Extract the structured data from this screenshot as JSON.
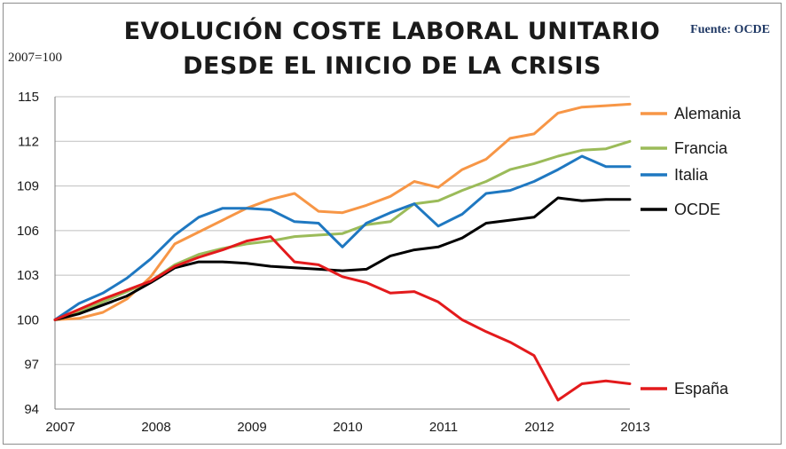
{
  "title_lines": [
    "EVOLUCIÓN COSTE LABORAL UNITARIO",
    "DESDE EL INICIO DE LA CRISIS"
  ],
  "source": "Fuente: OCDE",
  "unit_label": "2007=100",
  "chart_data": {
    "type": "line",
    "title": "EVOLUCIÓN COSTE LABORAL UNITARIO DESDE EL INICIO DE LA CRISIS",
    "xlabel": "",
    "ylabel": "2007=100",
    "xlim": [
      2007,
      2013
    ],
    "ylim": [
      94,
      115
    ],
    "yticks": [
      94,
      97,
      100,
      103,
      106,
      109,
      112,
      115
    ],
    "xticks": [
      2007,
      2008,
      2009,
      2010,
      2011,
      2012,
      2013
    ],
    "grid": "horizontal",
    "legend_placement": "right",
    "series": [
      {
        "name": "Alemania",
        "color": "#f79646",
        "points": [
          [
            2007,
            100
          ],
          [
            2007.25,
            100.1
          ],
          [
            2007.5,
            100.5
          ],
          [
            2007.75,
            101.4
          ],
          [
            2008,
            102.9
          ],
          [
            2008.25,
            105.1
          ],
          [
            2008.5,
            105.9
          ],
          [
            2008.75,
            106.7
          ],
          [
            2009,
            107.5
          ],
          [
            2009.25,
            108.1
          ],
          [
            2009.5,
            108.5
          ],
          [
            2009.75,
            107.3
          ],
          [
            2010,
            107.2
          ],
          [
            2010.25,
            107.7
          ],
          [
            2010.5,
            108.3
          ],
          [
            2010.75,
            109.3
          ],
          [
            2011,
            108.9
          ],
          [
            2011.25,
            110.1
          ],
          [
            2011.5,
            110.8
          ],
          [
            2011.75,
            112.2
          ],
          [
            2012,
            112.5
          ],
          [
            2012.25,
            113.9
          ],
          [
            2012.5,
            114.3
          ],
          [
            2012.75,
            114.4
          ],
          [
            2013,
            114.5
          ]
        ]
      },
      {
        "name": "Francia",
        "color": "#9bbb59",
        "points": [
          [
            2007,
            100
          ],
          [
            2007.25,
            100.5
          ],
          [
            2007.5,
            101.2
          ],
          [
            2007.75,
            101.9
          ],
          [
            2008,
            102.6
          ],
          [
            2008.25,
            103.7
          ],
          [
            2008.5,
            104.4
          ],
          [
            2008.75,
            104.8
          ],
          [
            2009,
            105.1
          ],
          [
            2009.25,
            105.3
          ],
          [
            2009.5,
            105.6
          ],
          [
            2009.75,
            105.7
          ],
          [
            2010,
            105.8
          ],
          [
            2010.25,
            106.4
          ],
          [
            2010.5,
            106.6
          ],
          [
            2010.75,
            107.8
          ],
          [
            2011,
            108
          ],
          [
            2011.25,
            108.7
          ],
          [
            2011.5,
            109.3
          ],
          [
            2011.75,
            110.1
          ],
          [
            2012,
            110.5
          ],
          [
            2012.25,
            111
          ],
          [
            2012.5,
            111.4
          ],
          [
            2012.75,
            111.5
          ],
          [
            2013,
            112
          ]
        ]
      },
      {
        "name": "Italia",
        "color": "#1f78c1",
        "points": [
          [
            2007,
            100
          ],
          [
            2007.25,
            101.1
          ],
          [
            2007.5,
            101.8
          ],
          [
            2007.75,
            102.8
          ],
          [
            2008,
            104.1
          ],
          [
            2008.25,
            105.7
          ],
          [
            2008.5,
            106.9
          ],
          [
            2008.75,
            107.5
          ],
          [
            2009,
            107.5
          ],
          [
            2009.25,
            107.4
          ],
          [
            2009.5,
            106.6
          ],
          [
            2009.75,
            106.5
          ],
          [
            2010,
            104.9
          ],
          [
            2010.25,
            106.5
          ],
          [
            2010.5,
            107.2
          ],
          [
            2010.75,
            107.8
          ],
          [
            2011,
            106.3
          ],
          [
            2011.25,
            107.1
          ],
          [
            2011.5,
            108.5
          ],
          [
            2011.75,
            108.7
          ],
          [
            2012,
            109.3
          ],
          [
            2012.25,
            110.1
          ],
          [
            2012.5,
            111
          ],
          [
            2012.75,
            110.3
          ],
          [
            2013,
            110.3
          ]
        ]
      },
      {
        "name": "OCDE",
        "color": "#000000",
        "points": [
          [
            2007,
            100
          ],
          [
            2007.25,
            100.4
          ],
          [
            2007.5,
            101
          ],
          [
            2007.75,
            101.6
          ],
          [
            2008,
            102.5
          ],
          [
            2008.25,
            103.5
          ],
          [
            2008.5,
            103.9
          ],
          [
            2008.75,
            103.9
          ],
          [
            2009,
            103.8
          ],
          [
            2009.25,
            103.6
          ],
          [
            2009.5,
            103.5
          ],
          [
            2009.75,
            103.4
          ],
          [
            2010,
            103.3
          ],
          [
            2010.25,
            103.4
          ],
          [
            2010.5,
            104.3
          ],
          [
            2010.75,
            104.7
          ],
          [
            2011,
            104.9
          ],
          [
            2011.25,
            105.5
          ],
          [
            2011.5,
            106.5
          ],
          [
            2011.75,
            106.7
          ],
          [
            2012,
            106.9
          ],
          [
            2012.25,
            108.2
          ],
          [
            2012.5,
            108
          ],
          [
            2012.75,
            108.1
          ],
          [
            2013,
            108.1
          ]
        ]
      },
      {
        "name": "España",
        "color": "#e31a1c",
        "points": [
          [
            2007,
            100
          ],
          [
            2007.25,
            100.7
          ],
          [
            2007.5,
            101.4
          ],
          [
            2007.75,
            102
          ],
          [
            2008,
            102.6
          ],
          [
            2008.25,
            103.6
          ],
          [
            2008.5,
            104.2
          ],
          [
            2008.75,
            104.7
          ],
          [
            2009,
            105.3
          ],
          [
            2009.25,
            105.6
          ],
          [
            2009.5,
            103.9
          ],
          [
            2009.75,
            103.7
          ],
          [
            2010,
            102.9
          ],
          [
            2010.25,
            102.5
          ],
          [
            2010.5,
            101.8
          ],
          [
            2010.75,
            101.9
          ],
          [
            2011,
            101.2
          ],
          [
            2011.25,
            100
          ],
          [
            2011.5,
            99.2
          ],
          [
            2011.75,
            98.5
          ],
          [
            2012,
            97.6
          ],
          [
            2012.25,
            94.6
          ],
          [
            2012.5,
            95.7
          ],
          [
            2012.75,
            95.9
          ],
          [
            2013,
            95.7
          ]
        ]
      }
    ]
  }
}
